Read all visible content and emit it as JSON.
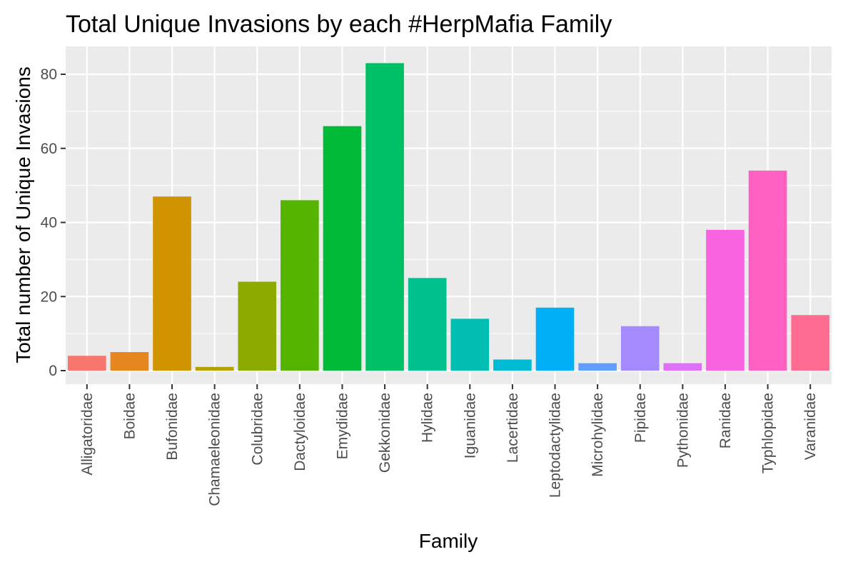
{
  "chart_data": {
    "type": "bar",
    "title": "Total Unique Invasions by each #HerpMafia Family",
    "xlabel": "Family",
    "ylabel": "Total number of Unique Invasions",
    "categories": [
      "Alligatoridae",
      "Boidae",
      "Bufonidae",
      "Chamaeleonidae",
      "Colubridae",
      "Dactyloidae",
      "Emydidae",
      "Gekkonidae",
      "Hylidae",
      "Iguanidae",
      "Lacertidae",
      "Leptodactylidae",
      "Microhylidae",
      "Pipidae",
      "Pythonidae",
      "Ranidae",
      "Typhlopidae",
      "Varanidae"
    ],
    "values": [
      4,
      5,
      47,
      1,
      24,
      46,
      66,
      83,
      25,
      14,
      3,
      17,
      2,
      12,
      2,
      38,
      54,
      15
    ],
    "colors": [
      "#F8766D",
      "#E7851E",
      "#D09400",
      "#B2A100",
      "#8BAB00",
      "#55B400",
      "#00BA38",
      "#00C065",
      "#00C08D",
      "#00BFB2",
      "#00BBD3",
      "#00B0F6",
      "#619CFF",
      "#A58AFF",
      "#DF70F8",
      "#F863DF",
      "#FF61C3",
      "#FF6C92"
    ],
    "ylim": [
      0,
      87
    ],
    "yticks": [
      0,
      20,
      40,
      60,
      80
    ],
    "grid": true,
    "legend": "none",
    "panel_background": "#EBEBEB",
    "grid_color": "#FFFFFF"
  }
}
